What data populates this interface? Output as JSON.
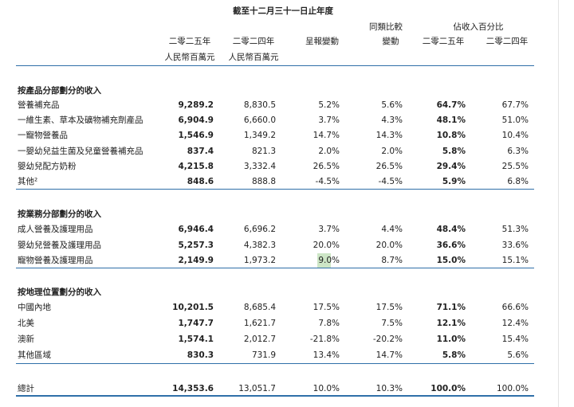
{
  "header": {
    "period": "截至十二月三十一日止年度",
    "like_for_like": "同類比較",
    "revenue_share": "佔收入百分比",
    "columns": [
      "二零二五年",
      "二零二四年",
      "呈報變動",
      "變動",
      "二零二五年",
      "二零二四年"
    ],
    "units": [
      "人民幣百萬元",
      "人民幣百萬元"
    ]
  },
  "sections": [
    {
      "title": "按產品分部劃分的收入",
      "rows": [
        [
          "營養補充品",
          "9,289.2",
          "8,830.5",
          "5.2%",
          "5.6%",
          "64.7%",
          "67.7%"
        ],
        [
          "一維生素、草本及礦物補充劑產品",
          "6,904.9",
          "6,660.0",
          "3.7%",
          "4.3%",
          "48.1%",
          "51.0%"
        ],
        [
          "一寵物營養品",
          "1,546.9",
          "1,349.2",
          "14.7%",
          "14.3%",
          "10.8%",
          "10.4%"
        ],
        [
          "一嬰幼兒益生菌及兒童營養補充品",
          "837.4",
          "821.3",
          "2.0%",
          "2.0%",
          "5.8%",
          "6.3%"
        ],
        [
          "嬰幼兒配方奶粉",
          "4,215.8",
          "3,332.4",
          "26.5%",
          "26.5%",
          "29.4%",
          "25.5%"
        ],
        [
          "其他²",
          "848.6",
          "888.8",
          "-4.5%",
          "-4.5%",
          "5.9%",
          "6.8%"
        ]
      ]
    },
    {
      "title": "按業務分部劃分的收入",
      "rows": [
        [
          "成人營養及護理用品",
          "6,946.4",
          "6,696.2",
          "3.7%",
          "4.4%",
          "48.4%",
          "51.3%"
        ],
        [
          "嬰幼兒營養及護理用品",
          "5,257.3",
          "4,382.3",
          "20.0%",
          "20.0%",
          "36.6%",
          "33.6%"
        ],
        [
          "寵物營養及護理用品",
          "2,149.9",
          "1,973.2",
          "9.0%",
          "8.7%",
          "15.0%",
          "15.1%"
        ]
      ]
    },
    {
      "title": "按地理位置劃分的收入",
      "rows": [
        [
          "中國內地",
          "10,201.5",
          "8,685.4",
          "17.5%",
          "17.5%",
          "71.1%",
          "66.6%"
        ],
        [
          "北美",
          "1,747.7",
          "1,621.7",
          "7.8%",
          "7.5%",
          "12.1%",
          "12.4%"
        ],
        [
          "澳新",
          "1,574.1",
          "2,012.7",
          "-21.8%",
          "-20.2%",
          "11.0%",
          "15.4%"
        ],
        [
          "其他區域",
          "830.3",
          "731.9",
          "13.4%",
          "14.7%",
          "5.8%",
          "5.6%"
        ]
      ]
    }
  ],
  "total": [
    "總計",
    "14,353.6",
    "13,051.7",
    "10.0%",
    "10.3%",
    "100.0%",
    "100.0%"
  ]
}
